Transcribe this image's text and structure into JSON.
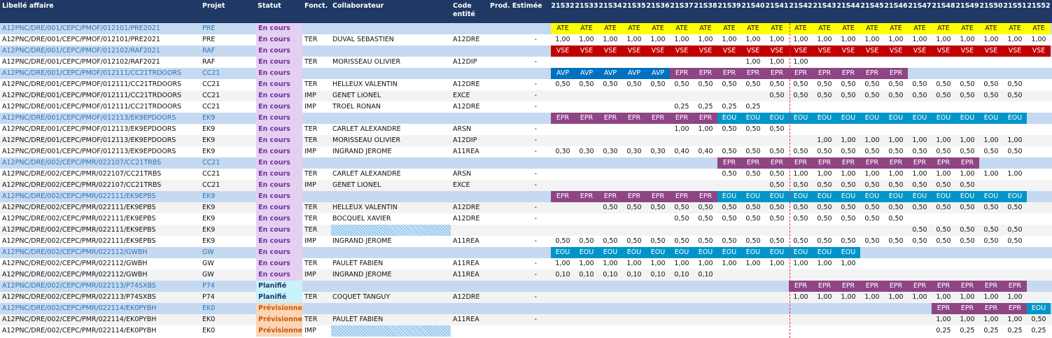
{
  "headers": {
    "libelle": "Libellé affaire",
    "projet": "Projet",
    "statut": "Statut",
    "fonct": "Fonct.",
    "collaborateur": "Collaborateur",
    "code": "Code\nentité",
    "prod": "Prod. Estimée"
  },
  "weeks": [
    "21S32",
    "21S33",
    "21S34",
    "21S35",
    "21S36",
    "21S37",
    "21S38",
    "21S39",
    "21S40",
    "21S41",
    "21S42",
    "21S43",
    "21S44",
    "21S45",
    "21S46",
    "21S47",
    "21S48",
    "21S49",
    "21S50",
    "21S51",
    "21S52"
  ],
  "colors": {
    "header_bg": "#1f3864",
    "parent_row_bg": "#c5d9f1",
    "ATE": "#ffff00",
    "VSE": "#c00000",
    "AVP": "#0070c0",
    "EPR": "#8e4585",
    "EOU": "#0095c8",
    "status_en_cours": "#7030a0",
    "status_planifie": "#1f3864",
    "status_previsionnel": "#c55a11",
    "week_separator": "#e03030"
  },
  "rows": [
    {
      "type": "parent",
      "libelle": "A12PNC/DRE/001/CEPC/PMOF/012101/PRE2021",
      "projet": "PRE",
      "statut": "En cours",
      "statut_style": "purple",
      "cells": [
        "ATE",
        "ATE",
        "ATE",
        "ATE",
        "ATE",
        "ATE",
        "ATE",
        "ATE",
        "ATE",
        "ATE",
        "ATE",
        "ATE",
        "ATE",
        "ATE",
        "ATE",
        "ATE",
        "ATE",
        "ATE",
        "ATE",
        "ATE",
        "ATE"
      ]
    },
    {
      "type": "child",
      "libelle": "A12PNC/DRE/001/CEPC/PMOF/012101/PRE2021",
      "projet": "PRE",
      "statut": "En cours",
      "statut_style": "purple",
      "fonct": "TER",
      "collaborateur": "DUVAL SEBASTIEN",
      "code": "A12DRE",
      "prod": "-",
      "cells": [
        "1,00",
        "1,00",
        "1,00",
        "1,00",
        "1,00",
        "1,00",
        "1,00",
        "1,00",
        "1,00",
        "1,00",
        "1,00",
        "1,00",
        "1,00",
        "1,00",
        "1,00",
        "1,00",
        "1,00",
        "1,00",
        "1,00",
        "1,00",
        "1,00"
      ]
    },
    {
      "type": "parent",
      "libelle": "A12PNC/DRE/001/CEPC/PMOF/012102/RAF2021",
      "projet": "RAF",
      "statut": "En cours",
      "statut_style": "purple",
      "cells": [
        "VSE",
        "VSE",
        "VSE",
        "VSE",
        "VSE",
        "VSE",
        "VSE",
        "VSE",
        "VSE",
        "VSE",
        "VSE",
        "VSE",
        "VSE",
        "VSE",
        "VSE",
        "VSE",
        "VSE",
        "VSE",
        "VSE",
        "VSE",
        "VSE"
      ]
    },
    {
      "type": "child",
      "libelle": "A12PNC/DRE/001/CEPC/PMOF/012102/RAF2021",
      "projet": "RAF",
      "statut": "En cours",
      "statut_style": "purple",
      "fonct": "TER",
      "collaborateur": "MORISSEAU OLIVIER",
      "code": "A12DIP",
      "prod": "-",
      "cells": [
        "",
        "",
        "",
        "",
        "",
        "",
        "",
        "",
        "1,00",
        "1,00",
        "1,00",
        "",
        "",
        "",
        "",
        "",
        "",
        "",
        "",
        "",
        ""
      ]
    },
    {
      "type": "parent",
      "libelle": "A12PNC/DRE/001/CEPC/PMOF/012111/CC21TRDOORS",
      "projet": "CC21",
      "statut": "En cours",
      "statut_style": "purple",
      "cells": [
        "AVP",
        "AVP",
        "AVP",
        "AVP",
        "AVP",
        "EPR",
        "EPR",
        "EPR",
        "EPR",
        "EPR",
        "EPR",
        "EPR",
        "EPR",
        "EPR",
        "EPR",
        "",
        "",
        "",
        "",
        "",
        ""
      ]
    },
    {
      "type": "child",
      "libelle": "A12PNC/DRE/001/CEPC/PMOF/012111/CC21TRDOORS",
      "projet": "CC21",
      "statut": "En cours",
      "statut_style": "purple",
      "fonct": "TER",
      "collaborateur": "HELLEUX VALENTIN",
      "code": "A12DRE",
      "prod": "-",
      "cells": [
        "0,50",
        "0,50",
        "0,50",
        "0,50",
        "0,50",
        "0,50",
        "0,50",
        "0,50",
        "0,50",
        "0,50",
        "0,50",
        "0,50",
        "0,50",
        "0,50",
        "0,50",
        "0,50",
        "0,50",
        "0,50",
        "0,50",
        "0,50",
        ""
      ]
    },
    {
      "type": "child",
      "libelle": "A12PNC/DRE/001/CEPC/PMOF/012111/CC21TRDOORS",
      "projet": "CC21",
      "statut": "En cours",
      "statut_style": "purple",
      "fonct": "IMP",
      "collaborateur": "GENET LIONEL",
      "code": "EXCE",
      "prod": "-",
      "cells": [
        "",
        "",
        "",
        "",
        "",
        "",
        "",
        "",
        "",
        "0,50",
        "0,50",
        "0,50",
        "0,50",
        "0,50",
        "0,50",
        "0,50",
        "0,50",
        "0,50",
        "0,50",
        "0,50",
        ""
      ]
    },
    {
      "type": "child",
      "libelle": "A12PNC/DRE/001/CEPC/PMOF/012111/CC21TRDOORS",
      "projet": "CC21",
      "statut": "En cours",
      "statut_style": "purple",
      "fonct": "IMP",
      "collaborateur": "TROEL RONAN",
      "code": "A12DRE",
      "prod": "-",
      "cells": [
        "",
        "",
        "",
        "",
        "",
        "0,25",
        "0,25",
        "0,25",
        "0,25",
        "",
        "",
        "",
        "",
        "",
        "",
        "",
        "",
        "",
        "",
        "",
        ""
      ]
    },
    {
      "type": "parent",
      "libelle": "A12PNC/DRE/001/CEPC/PMOF/012113/EK9EPDOORS",
      "projet": "EK9",
      "statut": "En cours",
      "statut_style": "purple",
      "cells": [
        "EPR",
        "EPR",
        "EPR",
        "EPR",
        "EPR",
        "EPR",
        "EPR",
        "EOU",
        "EOU",
        "EOU",
        "EOU",
        "EOU",
        "EOU",
        "EOU",
        "EOU",
        "EOU",
        "EOU",
        "EOU",
        "EOU",
        "EOU",
        ""
      ]
    },
    {
      "type": "child",
      "libelle": "A12PNC/DRE/001/CEPC/PMOF/012113/EK9EPDOORS",
      "projet": "EK9",
      "statut": "En cours",
      "statut_style": "purple",
      "fonct": "TER",
      "collaborateur": "CARLET ALEXANDRE",
      "code": "ARSN",
      "prod": "-",
      "cells": [
        "",
        "",
        "",
        "",
        "",
        "1,00",
        "1,00",
        "0,50",
        "0,50",
        "0,50",
        "",
        "",
        "",
        "",
        "",
        "",
        "",
        "",
        "",
        "",
        ""
      ]
    },
    {
      "type": "child",
      "libelle": "A12PNC/DRE/001/CEPC/PMOF/012113/EK9EPDOORS",
      "projet": "EK9",
      "statut": "En cours",
      "statut_style": "purple",
      "fonct": "TER",
      "collaborateur": "MORISSEAU OLIVIER",
      "code": "A12DIP",
      "prod": "-",
      "cells": [
        "",
        "",
        "",
        "",
        "",
        "",
        "",
        "",
        "",
        "",
        "",
        "1,00",
        "1,00",
        "1,00",
        "1,00",
        "1,00",
        "1,00",
        "1,00",
        "1,00",
        "1,00",
        ""
      ]
    },
    {
      "type": "child",
      "libelle": "A12PNC/DRE/001/CEPC/PMOF/012113/EK9EPDOORS",
      "projet": "EK9",
      "statut": "En cours",
      "statut_style": "purple",
      "fonct": "IMP",
      "collaborateur": "INGRAND JEROME",
      "code": "A11REA",
      "prod": "-",
      "cells": [
        "0,30",
        "0,30",
        "0,30",
        "0,30",
        "0,30",
        "0,40",
        "0,40",
        "0,50",
        "0,50",
        "0,50",
        "0,50",
        "0,50",
        "0,50",
        "0,50",
        "0,50",
        "0,50",
        "0,50",
        "0,50",
        "0,50",
        "0,50",
        ""
      ]
    },
    {
      "type": "parent",
      "libelle": "A12PNC/DRE/002/CEPC/PMR/022107/CC21TRBS",
      "projet": "CC21",
      "statut": "En cours",
      "statut_style": "purple",
      "cells": [
        "",
        "",
        "",
        "",
        "",
        "",
        "",
        "EPR",
        "EPR",
        "EPR",
        "EPR",
        "EPR",
        "EPR",
        "EPR",
        "EPR",
        "EPR",
        "EPR",
        "EPR",
        "",
        "",
        ""
      ]
    },
    {
      "type": "child",
      "libelle": "A12PNC/DRE/002/CEPC/PMR/022107/CC21TRBS",
      "projet": "CC21",
      "statut": "En cours",
      "statut_style": "purple",
      "fonct": "TER",
      "collaborateur": "CARLET ALEXANDRE",
      "code": "ARSN",
      "prod": "-",
      "cells": [
        "",
        "",
        "",
        "",
        "",
        "",
        "",
        "0,50",
        "0,50",
        "0,50",
        "1,00",
        "1,00",
        "1,00",
        "1,00",
        "1,00",
        "1,00",
        "1,00",
        "1,00",
        "1,00",
        "1,00",
        ""
      ]
    },
    {
      "type": "child",
      "libelle": "A12PNC/DRE/002/CEPC/PMR/022107/CC21TRBS",
      "projet": "CC21",
      "statut": "En cours",
      "statut_style": "purple",
      "fonct": "IMP",
      "collaborateur": "GENET LIONEL",
      "code": "EXCE",
      "prod": "-",
      "cells": [
        "",
        "",
        "",
        "",
        "",
        "",
        "",
        "",
        "",
        "0,50",
        "0,50",
        "0,50",
        "0,50",
        "0,50",
        "0,50",
        "0,50",
        "0,50",
        "0,50",
        "",
        "",
        ""
      ]
    },
    {
      "type": "parent",
      "libelle": "A12PNC/DRE/002/CEPC/PMR/022111/EK9EPBS",
      "projet": "EK9",
      "statut": "En cours",
      "statut_style": "purple",
      "cells": [
        "EPR",
        "EPR",
        "EPR",
        "EPR",
        "EPR",
        "EPR",
        "EPR",
        "EOU",
        "EOU",
        "EOU",
        "EOU",
        "EOU",
        "EOU",
        "EOU",
        "EOU",
        "EOU",
        "EOU",
        "EOU",
        "EOU",
        "EOU",
        ""
      ]
    },
    {
      "type": "child",
      "libelle": "A12PNC/DRE/002/CEPC/PMR/022111/EK9EPBS",
      "projet": "EK9",
      "statut": "En cours",
      "statut_style": "purple",
      "fonct": "TER",
      "collaborateur": "HELLEUX VALENTIN",
      "code": "A12DRE",
      "prod": "-",
      "cells": [
        "",
        "",
        "0,50",
        "0,50",
        "0,50",
        "0,50",
        "0,50",
        "0,50",
        "0,50",
        "0,50",
        "0,50",
        "0,50",
        "0,50",
        "0,50",
        "0,50",
        "0,50",
        "0,50",
        "0,50",
        "0,50",
        "0,50",
        ""
      ]
    },
    {
      "type": "child",
      "libelle": "A12PNC/DRE/002/CEPC/PMR/022111/EK9EPBS",
      "projet": "EK9",
      "statut": "En cours",
      "statut_style": "purple",
      "fonct": "TER",
      "collaborateur": "BOCQUEL XAVIER",
      "code": "A12DRE",
      "prod": "-",
      "cells": [
        "",
        "",
        "",
        "",
        "",
        "0,50",
        "0,50",
        "0,50",
        "0,50",
        "0,50",
        "0,50",
        "0,50",
        "0,50",
        "0,50",
        "0,50",
        "",
        "",
        "",
        "",
        "",
        ""
      ]
    },
    {
      "type": "child",
      "libelle": "A12PNC/DRE/002/CEPC/PMR/022111/EK9EPBS",
      "projet": "EK9",
      "statut": "En cours",
      "statut_style": "purple",
      "fonct": "TER",
      "blank": true,
      "cells": [
        "",
        "",
        "",
        "",
        "",
        "",
        "",
        "",
        "",
        "",
        "",
        "",
        "",
        "",
        "",
        "0,50",
        "0,50",
        "0,50",
        "0,50",
        "0,50",
        ""
      ]
    },
    {
      "type": "child",
      "libelle": "A12PNC/DRE/002/CEPC/PMR/022111/EK9EPBS",
      "projet": "EK9",
      "statut": "En cours",
      "statut_style": "purple",
      "fonct": "IMP",
      "collaborateur": "INGRAND JEROME",
      "code": "A11REA",
      "prod": "-",
      "cells": [
        "0,50",
        "0,50",
        "0,50",
        "0,50",
        "0,50",
        "0,50",
        "0,50",
        "0,50",
        "0,50",
        "0,50",
        "0,50",
        "0,50",
        "0,50",
        "0,50",
        "0,50",
        "0,50",
        "0,50",
        "0,50",
        "0,50",
        "0,50",
        ""
      ]
    },
    {
      "type": "parent",
      "libelle": "A12PNC/DRE/002/CEPC/PMR/022112/GWBH",
      "projet": "GW",
      "statut": "En cours",
      "statut_style": "purple",
      "cells": [
        "EOU",
        "EOU",
        "EOU",
        "EOU",
        "EOU",
        "EOU",
        "EOU",
        "EOU",
        "EOU",
        "EOU",
        "EOU",
        "EOU",
        "EOU",
        "",
        "",
        "",
        "",
        "",
        "",
        "",
        ""
      ]
    },
    {
      "type": "child",
      "libelle": "A12PNC/DRE/002/CEPC/PMR/022112/GWBH",
      "projet": "GW",
      "statut": "En cours",
      "statut_style": "purple",
      "fonct": "TER",
      "collaborateur": "PAULET FABIEN",
      "code": "A11REA",
      "prod": "-",
      "cells": [
        "1,00",
        "1,00",
        "1,00",
        "1,00",
        "1,00",
        "1,00",
        "1,00",
        "1,00",
        "1,00",
        "1,00",
        "1,00",
        "1,00",
        "1,00",
        "",
        "",
        "",
        "",
        "",
        "",
        "",
        ""
      ]
    },
    {
      "type": "child",
      "libelle": "A12PNC/DRE/002/CEPC/PMR/022112/GWBH",
      "projet": "GW",
      "statut": "En cours",
      "statut_style": "purple",
      "fonct": "IMP",
      "collaborateur": "INGRAND JEROME",
      "code": "A11REA",
      "prod": "-",
      "cells": [
        "0,10",
        "0,10",
        "0,10",
        "0,10",
        "0,10",
        "0,10",
        "0,10",
        "",
        "",
        "",
        "",
        "",
        "",
        "",
        "",
        "",
        "",
        "",
        "",
        "",
        ""
      ]
    },
    {
      "type": "parent",
      "libelle": "A12PNC/DRE/002/CEPC/PMR/022113/P74SXBS",
      "projet": "P74",
      "statut": "Planifié",
      "statut_style": "blue",
      "cells": [
        "",
        "",
        "",
        "",
        "",
        "",
        "",
        "",
        "",
        "",
        "EPR",
        "EPR",
        "EPR",
        "EPR",
        "EPR",
        "EPR",
        "EPR",
        "EPR",
        "EPR",
        "EPR",
        ""
      ]
    },
    {
      "type": "child",
      "libelle": "A12PNC/DRE/002/CEPC/PMR/022113/P74SXBS",
      "projet": "P74",
      "statut": "Planifié",
      "statut_style": "blue",
      "fonct": "TER",
      "collaborateur": "COQUET TANGUY",
      "code": "A12DRE",
      "prod": "-",
      "cells": [
        "",
        "",
        "",
        "",
        "",
        "",
        "",
        "",
        "",
        "",
        "1,00",
        "1,00",
        "1,00",
        "1,00",
        "1,00",
        "1,00",
        "1,00",
        "1,00",
        "1,00",
        "1,00",
        ""
      ]
    },
    {
      "type": "parent",
      "libelle": "A12PNC/DRE/002/CEPC/PMR/022114/EK0PYBH",
      "projet": "EK0",
      "statut": "Prévisionnel",
      "statut_style": "orange",
      "cells": [
        "",
        "",
        "",
        "",
        "",
        "",
        "",
        "",
        "",
        "",
        "",
        "",
        "",
        "",
        "",
        "",
        "EPR",
        "EPR",
        "EPR",
        "EPR",
        "EOU"
      ]
    },
    {
      "type": "child",
      "libelle": "A12PNC/DRE/002/CEPC/PMR/022114/EK0PYBH",
      "projet": "EK0",
      "statut": "Prévisionnel",
      "statut_style": "orange",
      "fonct": "TER",
      "collaborateur": "PAULET FABIEN",
      "code": "A11REA",
      "prod": "-",
      "cells": [
        "",
        "",
        "",
        "",
        "",
        "",
        "",
        "",
        "",
        "",
        "",
        "",
        "",
        "",
        "",
        "",
        "1,00",
        "1,00",
        "1,00",
        "1,00",
        "0,50"
      ]
    },
    {
      "type": "child",
      "libelle": "A12PNC/DRE/002/CEPC/PMR/022114/EK0PYBH",
      "projet": "EK0",
      "statut": "Prévisionnel",
      "statut_style": "orange",
      "fonct": "IMP",
      "blank": true,
      "cells": [
        "",
        "",
        "",
        "",
        "",
        "",
        "",
        "",
        "",
        "",
        "",
        "",
        "",
        "",
        "",
        "",
        "0,25",
        "0,25",
        "0,25",
        "0,25",
        "0,25"
      ]
    }
  ]
}
